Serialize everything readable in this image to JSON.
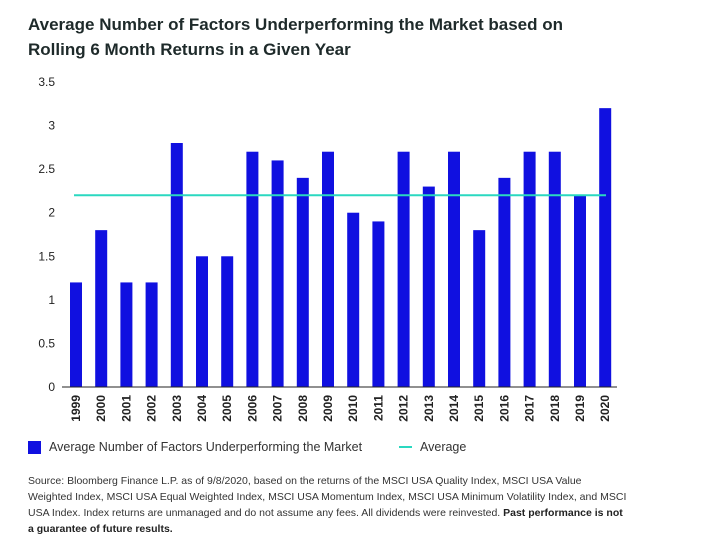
{
  "title_line1": "Average Number of Factors Underperforming the Market based on",
  "title_line2": "Rolling 6 Month Returns in a Given Year",
  "chart_data": {
    "type": "bar",
    "categories": [
      "1999",
      "2000",
      "2001",
      "2002",
      "2003",
      "2004",
      "2005",
      "2006",
      "2007",
      "2008",
      "2009",
      "2010",
      "2011",
      "2012",
      "2013",
      "2014",
      "2015",
      "2016",
      "2017",
      "2018",
      "2019",
      "2020"
    ],
    "series": [
      {
        "name": "Average Number of Factors Underperforming the Market",
        "values": [
          1.2,
          1.8,
          1.2,
          1.2,
          2.8,
          1.5,
          1.5,
          2.7,
          2.6,
          2.4,
          2.7,
          2.0,
          1.9,
          2.7,
          2.3,
          2.7,
          1.8,
          2.4,
          2.7,
          2.7,
          2.2,
          3.2
        ],
        "color": "#1010e0"
      }
    ],
    "average": {
      "name": "Average",
      "value": 2.2,
      "color": "#2ad8c0"
    },
    "yticks": [
      "0",
      "0.5",
      "1",
      "1.5",
      "2",
      "2.5",
      "3",
      "3.5"
    ],
    "ylim": [
      0,
      3.5
    ],
    "grid": false,
    "legend_position": "bottom"
  },
  "legend": {
    "bar_label": "Average Number of Factors Underperforming the Market",
    "line_label": "Average"
  },
  "footnote": {
    "text": "Source: Bloomberg Finance L.P. as of 9/8/2020, based on the returns of the MSCI USA Quality Index, MSCI USA Value Weighted Index, MSCI USA Equal Weighted Index, MSCI USA Momentum Index, MSCI USA Minimum Volatility Index, and MSCI USA Index. Index returns are unmanaged and do not assume any fees. All dividends were reinvested.",
    "bold": "Past performance is not a guarantee of future results."
  }
}
